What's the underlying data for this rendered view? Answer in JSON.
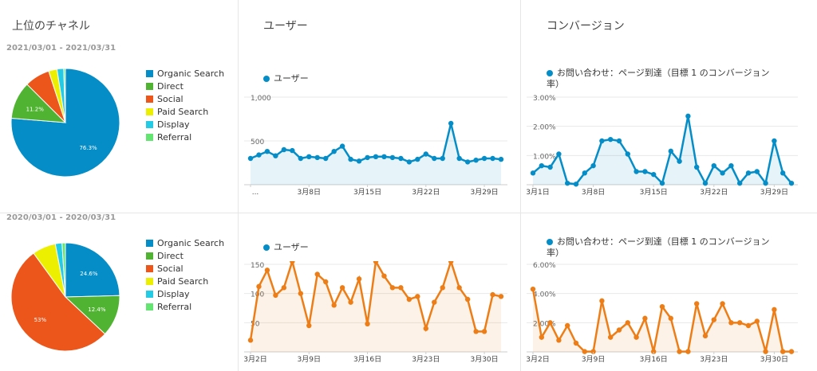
{
  "headers": {
    "channels": "上位のチャネル",
    "users": "ユーザー",
    "conversion": "コンバージョン"
  },
  "ranges": {
    "top": "2021/03/01 - 2021/03/31",
    "bottom": "2020/03/01 - 2020/03/31"
  },
  "legend_items": [
    {
      "label": "Organic Search",
      "color": "#058dc7"
    },
    {
      "label": "Direct",
      "color": "#50b432"
    },
    {
      "label": "Social",
      "color": "#ed561b"
    },
    {
      "label": "Paid Search",
      "color": "#edef00"
    },
    {
      "label": "Display",
      "color": "#24cbe5"
    },
    {
      "label": "Referral",
      "color": "#64e572"
    }
  ],
  "line_legends": {
    "users": "ユーザー",
    "conversion": "お問い合わせ：ページ到達（目標 1 のコンバージョン率）"
  },
  "chart_data": [
    {
      "type": "pie",
      "period": "2021/03/01 - 2021/03/31",
      "categories": [
        "Organic Search",
        "Direct",
        "Social",
        "Paid Search",
        "Display",
        "Referral"
      ],
      "values": [
        76.3,
        11.2,
        7.5,
        2.5,
        2.0,
        0.5
      ],
      "labels": [
        "76.3%",
        "11.2%",
        "",
        "",
        "",
        ""
      ]
    },
    {
      "type": "line",
      "period": "2021/03",
      "series_name": "ユーザー",
      "color": "#058dc7",
      "ylim": [
        0,
        1000
      ],
      "y_ticks": [
        "1,000",
        "500"
      ],
      "x_ticks": [
        "...",
        "3月8日",
        "3月15日",
        "3月22日",
        "3月29日"
      ],
      "values": [
        300,
        340,
        380,
        330,
        400,
        390,
        300,
        320,
        310,
        300,
        380,
        440,
        290,
        270,
        310,
        320,
        320,
        310,
        300,
        260,
        290,
        350,
        300,
        300,
        700,
        300,
        260,
        280,
        300,
        300,
        290
      ]
    },
    {
      "type": "line",
      "period": "2021/03",
      "series_name": "お問い合わせ：ページ到達（目標 1 のコンバージョン率）",
      "color": "#058dc7",
      "ylim": [
        0,
        3
      ],
      "y_ticks": [
        "3.00%",
        "2.00%",
        "1.00%"
      ],
      "x_ticks": [
        "3月1日",
        "3月8日",
        "3月15日",
        "3月22日",
        "3月29日"
      ],
      "values": [
        0.4,
        0.65,
        0.6,
        1.05,
        0.05,
        0.02,
        0.4,
        0.65,
        1.5,
        1.55,
        1.5,
        1.05,
        0.45,
        0.45,
        0.35,
        0.05,
        1.15,
        0.8,
        2.35,
        0.6,
        0.05,
        0.65,
        0.4,
        0.65,
        0.05,
        0.4,
        0.45,
        0.05,
        1.5,
        0.4,
        0.05
      ]
    },
    {
      "type": "pie",
      "period": "2020/03/01 - 2020/03/31",
      "categories": [
        "Organic Search",
        "Direct",
        "Social",
        "Paid Search",
        "Display",
        "Referral"
      ],
      "values": [
        24.6,
        12.4,
        53.0,
        7.0,
        2.0,
        1.0
      ],
      "labels": [
        "24.6%",
        "12.4%",
        "53%",
        "",
        "",
        ""
      ]
    },
    {
      "type": "line",
      "period": "2020/03",
      "series_name": "ユーザー",
      "color": "#ed7e17",
      "ylim": [
        0,
        150
      ],
      "y_ticks": [
        "150",
        "100",
        "50"
      ],
      "x_ticks": [
        "3月2日",
        "3月9日",
        "3月16日",
        "3月23日",
        "3月30日"
      ],
      "values": [
        20,
        112,
        140,
        97,
        110,
        155,
        100,
        45,
        133,
        120,
        80,
        110,
        85,
        125,
        48,
        155,
        130,
        110,
        110,
        90,
        95,
        40,
        85,
        110,
        155,
        110,
        90,
        35,
        35,
        98,
        95
      ]
    },
    {
      "type": "line",
      "period": "2020/03",
      "series_name": "お問い合わせ：ページ到達（目標 1 のコンバージョン率）",
      "color": "#ed7e17",
      "ylim": [
        0,
        6
      ],
      "y_ticks": [
        "6.00%",
        "4.00%",
        "2.00%"
      ],
      "x_ticks": [
        "3月2日",
        "3月9日",
        "3月16日",
        "3月23日",
        "3月30日"
      ],
      "values": [
        4.3,
        1.0,
        2.0,
        0.8,
        1.8,
        0.6,
        0.02,
        0.02,
        3.5,
        1.0,
        1.5,
        2.0,
        1.0,
        2.3,
        0.02,
        3.1,
        2.3,
        0.02,
        0.02,
        3.3,
        1.1,
        2.2,
        3.3,
        2.0,
        2.0,
        1.8,
        2.1,
        0.02,
        2.9,
        0.02,
        0.02
      ]
    }
  ]
}
